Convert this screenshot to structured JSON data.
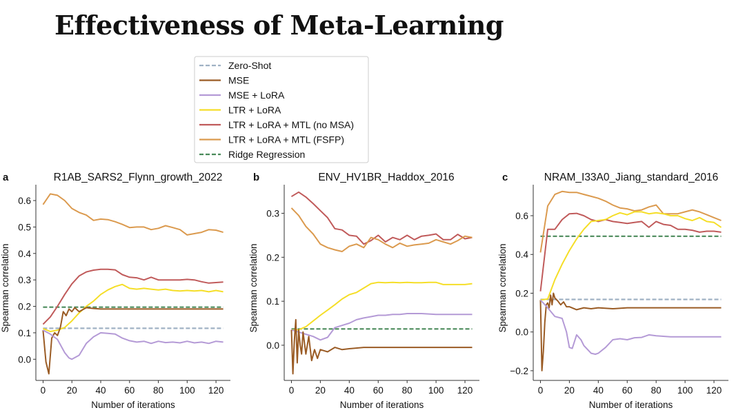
{
  "slide_title": "Effectiveness of Meta-Learning",
  "colors": {
    "zero_shot": "#9fb1c4",
    "mse": "#9a5b24",
    "mse_lora": "#b49ad6",
    "ltr_lora": "#f5de27",
    "ltr_lora_mtl_nomsa": "#c05a5a",
    "ltr_lora_mtl_fsfp": "#db9a4e",
    "ridge": "#4a8a5a"
  },
  "legend": {
    "entries": [
      {
        "label": "Zero-Shot",
        "key": "zero_shot",
        "dash": true
      },
      {
        "label": "MSE",
        "key": "mse",
        "dash": false
      },
      {
        "label": "MSE + LoRA",
        "key": "mse_lora",
        "dash": false
      },
      {
        "label": "LTR + LoRA",
        "key": "ltr_lora",
        "dash": false
      },
      {
        "label": "LTR + LoRA + MTL (no MSA)",
        "key": "ltr_lora_mtl_nomsa",
        "dash": false
      },
      {
        "label": "LTR + LoRA + MTL (FSFP)",
        "key": "ltr_lora_mtl_fsfp",
        "dash": false
      },
      {
        "label": "Ridge Regression",
        "key": "ridge",
        "dash": true
      }
    ]
  },
  "chart_data": [
    {
      "type": "line",
      "panel_label": "a",
      "title": "R1AB_SARS2_Flynn_growth_2022",
      "xlabel": "Number of iterations",
      "ylabel": "Spearman correlation",
      "xlim": [
        -5,
        130
      ],
      "ylim": [
        -0.08,
        0.66
      ],
      "xticks": [
        0,
        20,
        40,
        60,
        80,
        100,
        120
      ],
      "yticks": [
        0.0,
        0.1,
        0.2,
        0.3,
        0.4,
        0.5,
        0.6
      ],
      "ytick_labels": [
        "0.0",
        "0.1",
        "0.2",
        "0.3",
        "0.4",
        "0.5",
        "0.6"
      ],
      "series": [
        {
          "name": "Zero-Shot",
          "key": "zero_shot",
          "dash": true,
          "x": [
            0,
            125
          ],
          "y": [
            0.117,
            0.117
          ]
        },
        {
          "name": "Ridge Regression",
          "key": "ridge",
          "dash": true,
          "x": [
            0,
            125
          ],
          "y": [
            0.197,
            0.197
          ]
        },
        {
          "name": "LTR + LoRA + MTL (FSFP)",
          "key": "ltr_lora_mtl_fsfp",
          "x": [
            0,
            5,
            10,
            15,
            20,
            25,
            30,
            35,
            40,
            45,
            50,
            55,
            60,
            65,
            70,
            75,
            80,
            85,
            90,
            95,
            100,
            105,
            110,
            115,
            120,
            125
          ],
          "y": [
            0.585,
            0.625,
            0.62,
            0.6,
            0.57,
            0.555,
            0.545,
            0.525,
            0.53,
            0.528,
            0.52,
            0.51,
            0.498,
            0.5,
            0.5,
            0.49,
            0.495,
            0.505,
            0.498,
            0.49,
            0.47,
            0.475,
            0.48,
            0.49,
            0.488,
            0.48
          ]
        },
        {
          "name": "LTR + LoRA + MTL (no MSA)",
          "key": "ltr_lora_mtl_nomsa",
          "x": [
            0,
            5,
            10,
            15,
            20,
            25,
            30,
            35,
            40,
            45,
            50,
            55,
            60,
            65,
            70,
            75,
            80,
            85,
            90,
            95,
            100,
            105,
            110,
            115,
            120,
            125
          ],
          "y": [
            0.132,
            0.16,
            0.2,
            0.245,
            0.285,
            0.315,
            0.33,
            0.337,
            0.34,
            0.34,
            0.338,
            0.32,
            0.31,
            0.308,
            0.3,
            0.31,
            0.3,
            0.3,
            0.3,
            0.3,
            0.302,
            0.3,
            0.293,
            0.288,
            0.29,
            0.292
          ]
        },
        {
          "name": "LTR + LoRA",
          "key": "ltr_lora",
          "x": [
            0,
            5,
            10,
            15,
            20,
            25,
            30,
            35,
            40,
            45,
            50,
            55,
            60,
            65,
            70,
            75,
            80,
            85,
            90,
            95,
            100,
            105,
            110,
            115,
            120,
            125
          ],
          "y": [
            0.116,
            0.105,
            0.11,
            0.12,
            0.145,
            0.175,
            0.2,
            0.22,
            0.245,
            0.262,
            0.275,
            0.283,
            0.268,
            0.265,
            0.268,
            0.265,
            0.262,
            0.265,
            0.26,
            0.258,
            0.26,
            0.258,
            0.26,
            0.255,
            0.26,
            0.255
          ]
        },
        {
          "name": "MSE",
          "key": "mse",
          "x": [
            0,
            2,
            4,
            6,
            8,
            10,
            12,
            14,
            16,
            18,
            20,
            22,
            25,
            30,
            35,
            40,
            50,
            60,
            80,
            100,
            125
          ],
          "y": [
            0.11,
            -0.01,
            -0.055,
            0.08,
            0.1,
            0.09,
            0.12,
            0.18,
            0.165,
            0.19,
            0.18,
            0.195,
            0.18,
            0.195,
            0.192,
            0.19,
            0.19,
            0.19,
            0.19,
            0.19,
            0.19
          ]
        },
        {
          "name": "MSE + LoRA",
          "key": "mse_lora",
          "x": [
            0,
            5,
            10,
            15,
            18,
            20,
            25,
            30,
            35,
            40,
            45,
            50,
            55,
            60,
            65,
            70,
            75,
            80,
            85,
            90,
            95,
            100,
            105,
            110,
            115,
            120,
            125
          ],
          "y": [
            0.11,
            0.095,
            0.075,
            0.025,
            0.005,
            0.0,
            0.015,
            0.06,
            0.085,
            0.1,
            0.098,
            0.095,
            0.08,
            0.07,
            0.065,
            0.068,
            0.06,
            0.068,
            0.063,
            0.065,
            0.062,
            0.068,
            0.062,
            0.065,
            0.06,
            0.068,
            0.065
          ]
        }
      ]
    },
    {
      "type": "line",
      "panel_label": "b",
      "title": "ENV_HV1BR_Haddox_2016",
      "xlabel": "Number of iterations",
      "ylabel": "Spearman correlation",
      "xlim": [
        -5,
        130
      ],
      "ylim": [
        -0.08,
        0.365
      ],
      "xticks": [
        0,
        20,
        40,
        60,
        80,
        100,
        120
      ],
      "yticks": [
        0.0,
        0.1,
        0.2,
        0.3
      ],
      "ytick_labels": [
        "0.0",
        "0.1",
        "0.2",
        "0.3"
      ],
      "series": [
        {
          "name": "Ridge Regression",
          "key": "ridge",
          "dash": true,
          "x": [
            0,
            125
          ],
          "y": [
            0.037,
            0.037
          ]
        },
        {
          "name": "LTR + LoRA + MTL (no MSA)",
          "key": "ltr_lora_mtl_nomsa",
          "x": [
            0,
            5,
            10,
            15,
            20,
            25,
            30,
            35,
            40,
            45,
            50,
            55,
            60,
            65,
            70,
            75,
            80,
            85,
            90,
            95,
            100,
            105,
            110,
            115,
            120,
            125
          ],
          "y": [
            0.338,
            0.348,
            0.337,
            0.322,
            0.306,
            0.29,
            0.265,
            0.262,
            0.25,
            0.248,
            0.23,
            0.238,
            0.25,
            0.235,
            0.245,
            0.24,
            0.25,
            0.24,
            0.248,
            0.25,
            0.253,
            0.24,
            0.24,
            0.252,
            0.242,
            0.245
          ]
        },
        {
          "name": "LTR + LoRA + MTL (FSFP)",
          "key": "ltr_lora_mtl_fsfp",
          "x": [
            0,
            5,
            10,
            15,
            20,
            25,
            30,
            35,
            40,
            45,
            50,
            55,
            60,
            65,
            70,
            75,
            80,
            85,
            90,
            95,
            100,
            105,
            110,
            115,
            120,
            125
          ],
          "y": [
            0.312,
            0.295,
            0.27,
            0.253,
            0.23,
            0.222,
            0.217,
            0.213,
            0.225,
            0.23,
            0.222,
            0.245,
            0.24,
            0.23,
            0.222,
            0.232,
            0.225,
            0.228,
            0.23,
            0.232,
            0.24,
            0.235,
            0.23,
            0.238,
            0.248,
            0.245
          ]
        },
        {
          "name": "LTR + LoRA",
          "key": "ltr_lora",
          "x": [
            0,
            5,
            10,
            15,
            20,
            25,
            30,
            35,
            40,
            45,
            50,
            55,
            60,
            65,
            70,
            75,
            80,
            85,
            90,
            95,
            100,
            105,
            110,
            115,
            120,
            125
          ],
          "y": [
            0.035,
            0.035,
            0.042,
            0.055,
            0.068,
            0.08,
            0.092,
            0.105,
            0.115,
            0.12,
            0.13,
            0.14,
            0.143,
            0.142,
            0.143,
            0.142,
            0.143,
            0.142,
            0.142,
            0.143,
            0.143,
            0.138,
            0.138,
            0.138,
            0.138,
            0.14
          ]
        },
        {
          "name": "MSE + LoRA",
          "key": "mse_lora",
          "x": [
            0,
            5,
            10,
            15,
            20,
            25,
            30,
            35,
            40,
            45,
            50,
            55,
            60,
            65,
            70,
            75,
            80,
            85,
            90,
            95,
            100,
            105,
            110,
            115,
            120,
            125
          ],
          "y": [
            0.035,
            0.03,
            0.025,
            0.02,
            0.012,
            0.018,
            0.04,
            0.045,
            0.05,
            0.058,
            0.062,
            0.065,
            0.068,
            0.068,
            0.07,
            0.07,
            0.072,
            0.072,
            0.072,
            0.071,
            0.07,
            0.07,
            0.07,
            0.07,
            0.07,
            0.07
          ]
        },
        {
          "name": "MSE",
          "key": "mse",
          "x": [
            0,
            1,
            2,
            3,
            4,
            5,
            6,
            7,
            8,
            10,
            12,
            14,
            16,
            18,
            20,
            25,
            30,
            35,
            40,
            50,
            60,
            80,
            100,
            125
          ],
          "y": [
            0.035,
            -0.065,
            0.01,
            0.058,
            -0.04,
            0.035,
            0.0,
            -0.02,
            0.03,
            -0.02,
            0.02,
            -0.035,
            -0.01,
            -0.03,
            -0.01,
            -0.015,
            -0.005,
            -0.01,
            -0.008,
            -0.005,
            -0.005,
            -0.005,
            -0.005,
            -0.005
          ]
        }
      ]
    },
    {
      "type": "line",
      "panel_label": "c",
      "title": "NRAM_I33A0_Jiang_standard_2016",
      "xlabel": "Number of iterations",
      "ylabel": "Spearman correlation",
      "xlim": [
        -5,
        130
      ],
      "ylim": [
        -0.25,
        0.76
      ],
      "xticks": [
        0,
        20,
        40,
        60,
        80,
        100,
        120
      ],
      "yticks": [
        -0.2,
        0.0,
        0.2,
        0.4,
        0.6
      ],
      "ytick_labels": [
        "−0.2",
        "0.0",
        "0.2",
        "0.4",
        "0.6"
      ],
      "series": [
        {
          "name": "Zero-Shot",
          "key": "zero_shot",
          "dash": true,
          "x": [
            0,
            125
          ],
          "y": [
            0.168,
            0.168
          ]
        },
        {
          "name": "Ridge Regression",
          "key": "ridge",
          "dash": true,
          "x": [
            0,
            125
          ],
          "y": [
            0.494,
            0.494
          ]
        },
        {
          "name": "LTR + LoRA + MTL (FSFP)",
          "key": "ltr_lora_mtl_fsfp",
          "x": [
            0,
            5,
            10,
            15,
            20,
            25,
            30,
            35,
            40,
            45,
            50,
            55,
            60,
            65,
            70,
            75,
            80,
            85,
            90,
            95,
            100,
            105,
            110,
            115,
            120,
            125
          ],
          "y": [
            0.41,
            0.65,
            0.71,
            0.725,
            0.72,
            0.72,
            0.71,
            0.7,
            0.69,
            0.675,
            0.655,
            0.64,
            0.635,
            0.625,
            0.63,
            0.645,
            0.655,
            0.61,
            0.61,
            0.61,
            0.62,
            0.63,
            0.62,
            0.605,
            0.59,
            0.575
          ]
        },
        {
          "name": "LTR + LoRA + MTL (no MSA)",
          "key": "ltr_lora_mtl_nomsa",
          "x": [
            0,
            5,
            10,
            15,
            20,
            25,
            30,
            35,
            40,
            45,
            50,
            55,
            60,
            65,
            70,
            75,
            80,
            85,
            90,
            95,
            100,
            105,
            110,
            115,
            120,
            125
          ],
          "y": [
            0.21,
            0.53,
            0.53,
            0.58,
            0.61,
            0.612,
            0.6,
            0.58,
            0.57,
            0.58,
            0.57,
            0.565,
            0.56,
            0.565,
            0.57,
            0.54,
            0.57,
            0.555,
            0.55,
            0.53,
            0.53,
            0.525,
            0.515,
            0.52,
            0.52,
            0.515
          ]
        },
        {
          "name": "LTR + LoRA",
          "key": "ltr_lora",
          "x": [
            0,
            5,
            10,
            15,
            20,
            25,
            30,
            35,
            40,
            45,
            50,
            55,
            60,
            65,
            70,
            75,
            80,
            85,
            90,
            95,
            100,
            105,
            110,
            115,
            120,
            125
          ],
          "y": [
            0.165,
            0.17,
            0.27,
            0.35,
            0.42,
            0.48,
            0.53,
            0.57,
            0.575,
            0.58,
            0.6,
            0.615,
            0.605,
            0.62,
            0.62,
            0.61,
            0.615,
            0.61,
            0.6,
            0.6,
            0.585,
            0.575,
            0.59,
            0.57,
            0.565,
            0.54
          ]
        },
        {
          "name": "MSE",
          "key": "mse",
          "x": [
            0,
            1,
            2,
            3,
            4,
            5,
            6,
            7,
            8,
            9,
            10,
            12,
            14,
            16,
            18,
            20,
            25,
            30,
            35,
            40,
            50,
            60,
            80,
            100,
            125
          ],
          "y": [
            0.165,
            -0.2,
            -0.1,
            0.05,
            0.14,
            0.15,
            0.125,
            0.19,
            0.14,
            0.2,
            0.175,
            0.16,
            0.14,
            0.155,
            0.13,
            0.13,
            0.115,
            0.125,
            0.12,
            0.125,
            0.12,
            0.125,
            0.125,
            0.125,
            0.125
          ]
        },
        {
          "name": "MSE + LoRA",
          "key": "mse_lora",
          "x": [
            0,
            5,
            10,
            15,
            18,
            20,
            22,
            25,
            28,
            30,
            35,
            38,
            40,
            45,
            50,
            55,
            60,
            65,
            70,
            75,
            80,
            90,
            100,
            110,
            125
          ],
          "y": [
            0.165,
            0.125,
            0.08,
            0.07,
            0.0,
            -0.08,
            -0.085,
            -0.015,
            -0.04,
            -0.07,
            -0.11,
            -0.115,
            -0.11,
            -0.08,
            -0.04,
            -0.035,
            -0.04,
            -0.03,
            -0.028,
            -0.015,
            -0.02,
            -0.025,
            -0.025,
            -0.025,
            -0.025
          ]
        }
      ]
    }
  ]
}
